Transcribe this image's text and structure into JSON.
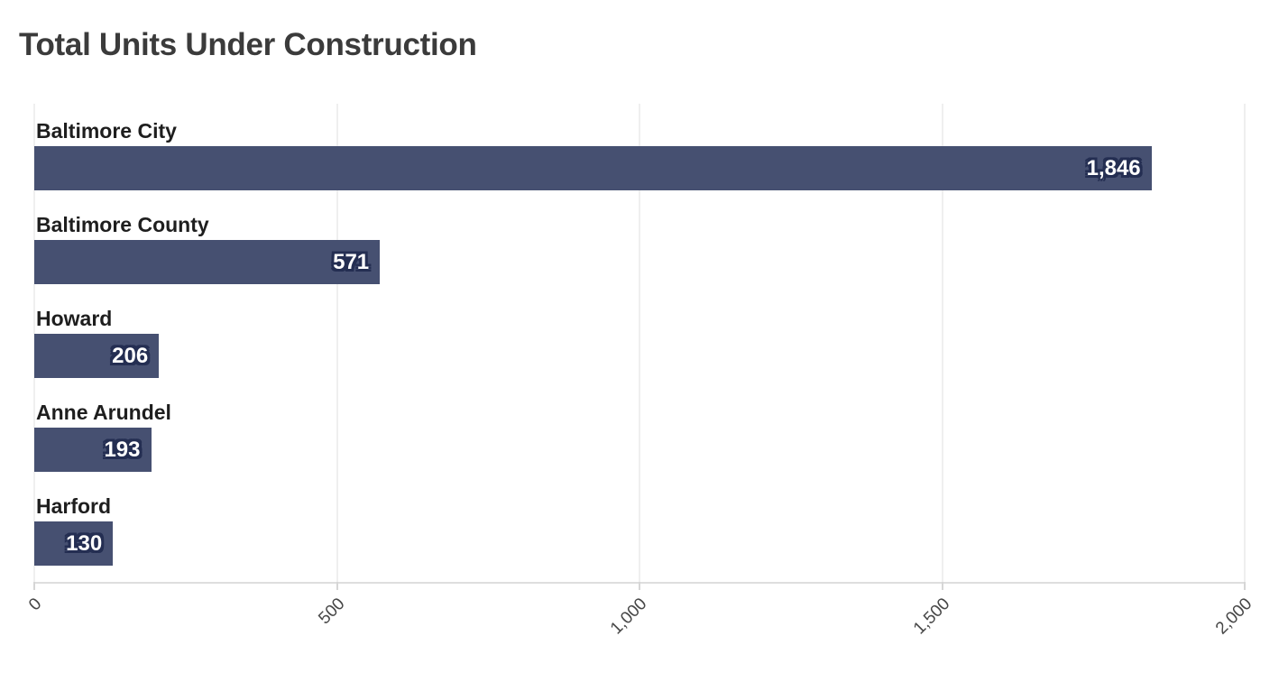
{
  "chart_data": {
    "type": "bar",
    "orientation": "horizontal",
    "title": "Total Units Under Construction",
    "categories": [
      "Baltimore City",
      "Baltimore County",
      "Howard",
      "Anne Arundel",
      "Harford"
    ],
    "values": [
      1846,
      571,
      206,
      193,
      130
    ],
    "value_labels": [
      "1,846",
      "571",
      "206",
      "193",
      "130"
    ],
    "xlabel": "",
    "ylabel": "",
    "xlim": [
      0,
      2000
    ],
    "x_ticks": [
      0,
      500,
      1000,
      1500,
      2000
    ],
    "x_tick_labels": [
      "0",
      "500",
      "1,000",
      "1,500",
      "2,000"
    ],
    "grid": "vertical gridlines on",
    "legend": "none"
  },
  "colors": {
    "background": "#ffffff",
    "bar": "#465071",
    "bar_value_text": "#ffffff",
    "bar_value_outline": "#242e52",
    "title_text": "#3b3b3b",
    "category_label_text": "#1e1e1e",
    "gridline": "#efefef",
    "axis_line": "#dedede",
    "tick_mark": "#d6d6d6",
    "tick_label_text": "#474747"
  }
}
